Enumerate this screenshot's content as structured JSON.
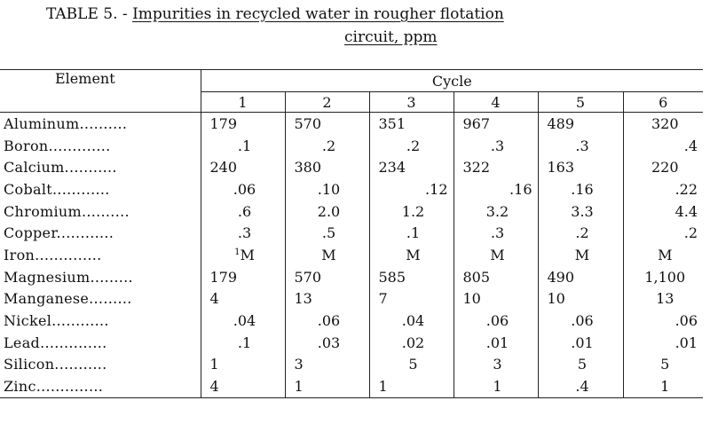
{
  "title": {
    "prefix": "TABLE 5.  -",
    "main": "Impurities in recycled water in rougher flotation",
    "line2": "circuit, ppm"
  },
  "table": {
    "element_header": "Element",
    "cycle_header": "Cycle",
    "cycles": [
      "1",
      "2",
      "3",
      "4",
      "5",
      "6"
    ],
    "rows": [
      {
        "element": "Aluminum..........",
        "values": [
          "179",
          "570",
          "351",
          "967",
          "489",
          "320"
        ],
        "align": [
          "l",
          "l",
          "l",
          "l",
          "l",
          "c"
        ]
      },
      {
        "element": "Boron.............",
        "values": [
          ".1",
          ".2",
          ".2",
          ".3",
          ".3",
          ".4"
        ],
        "align": [
          "c",
          "c",
          "c",
          "c",
          "c",
          "r"
        ]
      },
      {
        "element": "Calcium...........",
        "values": [
          "240",
          "380",
          "234",
          "322",
          "163",
          "220"
        ],
        "align": [
          "l",
          "l",
          "l",
          "l",
          "l",
          "c"
        ]
      },
      {
        "element": "Cobalt............",
        "values": [
          ".06",
          ".10",
          ".12",
          ".16",
          ".16",
          ".22"
        ],
        "align": [
          "c",
          "c",
          "r",
          "r",
          "c",
          "r"
        ]
      },
      {
        "element": "Chromium..........",
        "values": [
          ".6",
          "2.0",
          "1.2",
          "3.2",
          "3.3",
          "4.4"
        ],
        "align": [
          "c",
          "c",
          "c",
          "c",
          "c",
          "r"
        ]
      },
      {
        "element": "Copper............",
        "values": [
          ".3",
          ".5",
          ".1",
          ".3",
          ".2",
          ".2"
        ],
        "align": [
          "c",
          "c",
          "c",
          "c",
          "c",
          "r"
        ]
      },
      {
        "element": "Iron..............",
        "values": [
          "M",
          "M",
          "M",
          "M",
          "M",
          "M"
        ],
        "align": [
          "c",
          "c",
          "c",
          "c",
          "c",
          "c"
        ],
        "footnote": "1"
      },
      {
        "element": "Magnesium.........",
        "values": [
          "179",
          "570",
          "585",
          "805",
          "490",
          "1,100"
        ],
        "align": [
          "l",
          "l",
          "l",
          "l",
          "l",
          "c"
        ]
      },
      {
        "element": "Manganese.........",
        "values": [
          "4",
          "13",
          "7",
          "10",
          "10",
          "13"
        ],
        "align": [
          "l",
          "l",
          "l",
          "l",
          "l",
          "c"
        ]
      },
      {
        "element": "Nickel............",
        "values": [
          ".04",
          ".06",
          ".04",
          ".06",
          ".06",
          ".06"
        ],
        "align": [
          "c",
          "c",
          "c",
          "c",
          "c",
          "r"
        ]
      },
      {
        "element": "Lead..............",
        "values": [
          ".1",
          ".03",
          ".02",
          ".01",
          ".01",
          ".01"
        ],
        "align": [
          "c",
          "c",
          "c",
          "c",
          "c",
          "r"
        ]
      },
      {
        "element": "Silicon...........",
        "values": [
          "1",
          "3",
          "5",
          "3",
          "5",
          "5"
        ],
        "align": [
          "l",
          "l",
          "c",
          "c",
          "c",
          "c"
        ]
      },
      {
        "element": "Zinc..............",
        "values": [
          "4",
          "1",
          "1",
          "1",
          ".4",
          "1"
        ],
        "align": [
          "l",
          "l",
          "l",
          "c",
          "c",
          "c"
        ]
      }
    ]
  }
}
